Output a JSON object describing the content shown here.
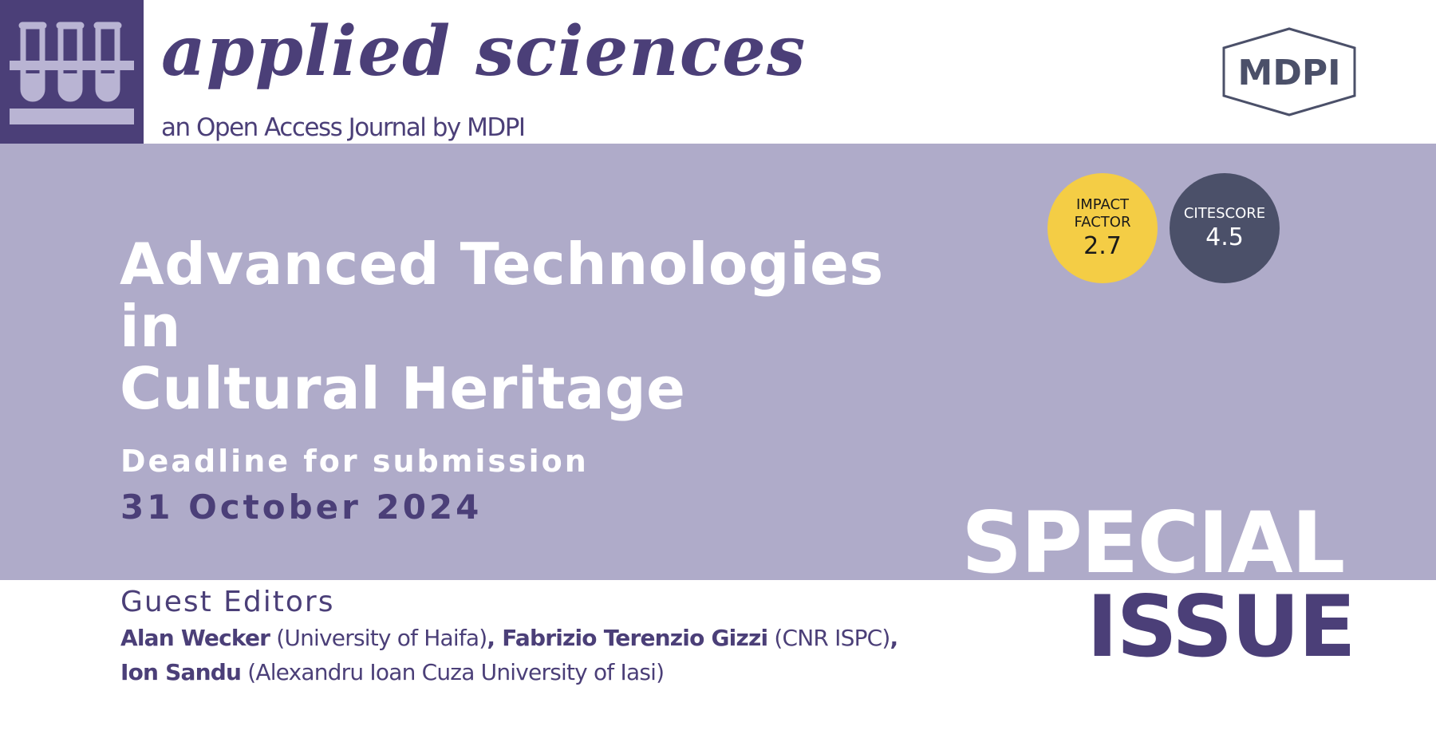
{
  "header": {
    "journal_title": "applied sciences",
    "journal_subtitle": "an Open Access Journal by MDPI",
    "publisher": "MDPI"
  },
  "badges": {
    "impact_factor": {
      "label_line1": "IMPACT",
      "label_line2": "FACTOR",
      "value": "2.7",
      "color": "#f4cd45"
    },
    "citescore": {
      "label": "CITESCORE",
      "value": "4.5",
      "color": "#4b5069"
    }
  },
  "special_issue": {
    "title_line1": "Advanced Technologies in",
    "title_line2": "Cultural Heritage",
    "deadline_label": "Deadline for submission",
    "deadline_date": "31 October 2024",
    "banner_word1": "SPECIAL",
    "banner_word2": "ISSUE"
  },
  "guest_editors": {
    "heading": "Guest Editors",
    "editors": [
      {
        "name": "Alan Wecker",
        "affiliation": "(University of Haifa)"
      },
      {
        "name": "Fabrizio Terenzio Gizzi",
        "affiliation": "(CNR ISPC)"
      },
      {
        "name": "Ion Sandu",
        "affiliation": "(Alexandru Ioan Cuza University of Iasi)"
      }
    ]
  },
  "colors": {
    "brand_purple": "#4b3f78",
    "band_lavender": "#afabc9",
    "impact_yellow": "#f4cd45",
    "citescore_slate": "#4b5069"
  },
  "icons": [
    "test-tubes-logo-icon",
    "mdpi-logo-icon"
  ]
}
